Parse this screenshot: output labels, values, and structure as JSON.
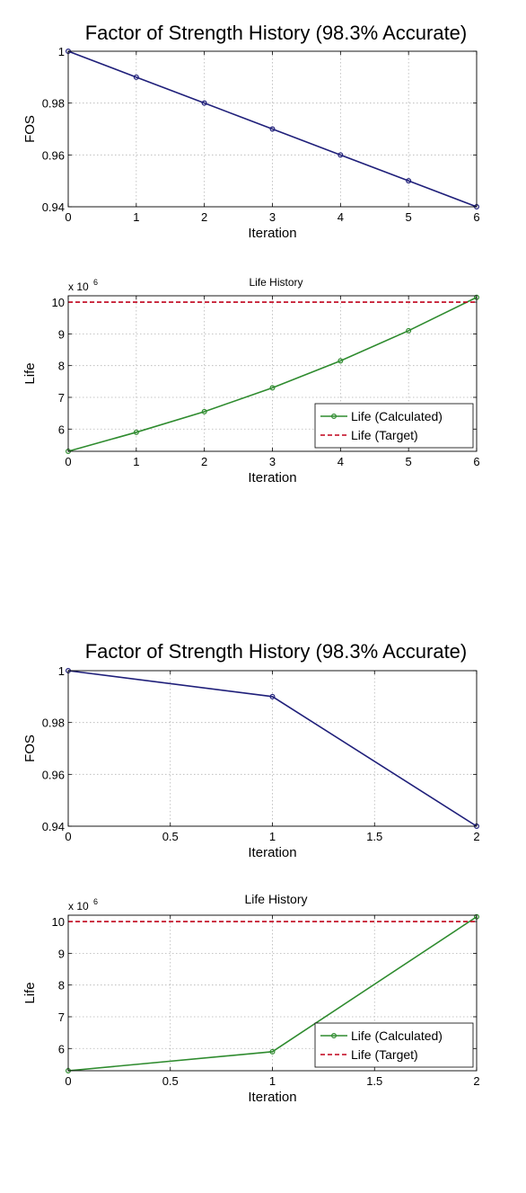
{
  "chart_data": [
    {
      "type": "line",
      "title": "Factor of Strength History (98.3% Accurate)",
      "xlabel": "Iteration",
      "ylabel": "FOS",
      "xlim": [
        0,
        6
      ],
      "ylim": [
        0.94,
        1.0
      ],
      "xticks": [
        "0",
        "1",
        "2",
        "3",
        "4",
        "5",
        "6"
      ],
      "yticks": [
        "0.94",
        "0.96",
        "0.98",
        "1"
      ],
      "grid": true,
      "series": [
        {
          "color": "#1f1f7a",
          "marker": "circle",
          "x": [
            0,
            1,
            2,
            3,
            4,
            5,
            6
          ],
          "y": [
            1.0,
            0.99,
            0.98,
            0.97,
            0.96,
            0.95,
            0.94
          ]
        }
      ]
    },
    {
      "type": "line",
      "title": "Life History",
      "xlabel": "Iteration",
      "ylabel": "Life",
      "exponent_label": "x 10",
      "exponent": "6",
      "xlim": [
        0,
        6
      ],
      "ylim": [
        5.3,
        10.2
      ],
      "xticks": [
        "0",
        "1",
        "2",
        "3",
        "4",
        "5",
        "6"
      ],
      "yticks": [
        "6",
        "7",
        "8",
        "9",
        "10"
      ],
      "grid": true,
      "legend_position": "bottom-right",
      "series": [
        {
          "name": "Life (Calculated)",
          "color": "#2e8b2e",
          "marker": "circle",
          "x": [
            0,
            1,
            2,
            3,
            4,
            5,
            6
          ],
          "y": [
            5.3,
            5.9,
            6.55,
            7.3,
            8.15,
            9.1,
            10.15
          ]
        },
        {
          "name": "Life (Target)",
          "color": "#c0001a",
          "dashed": true,
          "x": [
            0,
            6
          ],
          "y": [
            10.0,
            10.0
          ]
        }
      ]
    },
    {
      "type": "line",
      "title": "Factor of Strength History (98.3% Accurate)",
      "xlabel": "Iteration",
      "ylabel": "FOS",
      "xlim": [
        0,
        2
      ],
      "ylim": [
        0.94,
        1.0
      ],
      "xticks": [
        "0",
        "0.5",
        "1",
        "1.5",
        "2"
      ],
      "yticks": [
        "0.94",
        "0.96",
        "0.98",
        "1"
      ],
      "grid": true,
      "series": [
        {
          "color": "#1f1f7a",
          "marker": "circle",
          "x": [
            0,
            1,
            2
          ],
          "y": [
            1.0,
            0.99,
            0.94
          ]
        }
      ]
    },
    {
      "type": "line",
      "title": "Life History",
      "xlabel": "Iteration",
      "ylabel": "Life",
      "exponent_label": "x 10",
      "exponent": "6",
      "xlim": [
        0,
        2
      ],
      "ylim": [
        5.3,
        10.2
      ],
      "xticks": [
        "0",
        "0.5",
        "1",
        "1.5",
        "2"
      ],
      "yticks": [
        "6",
        "7",
        "8",
        "9",
        "10"
      ],
      "grid": true,
      "legend_position": "bottom-right",
      "series": [
        {
          "name": "Life (Calculated)",
          "color": "#2e8b2e",
          "marker": "circle",
          "x": [
            0,
            1,
            2
          ],
          "y": [
            5.3,
            5.9,
            10.15
          ]
        },
        {
          "name": "Life (Target)",
          "color": "#c0001a",
          "dashed": true,
          "x": [
            0,
            2
          ],
          "y": [
            10.0,
            10.0
          ]
        }
      ]
    }
  ]
}
